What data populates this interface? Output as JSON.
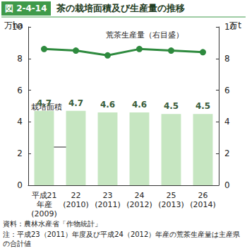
{
  "chart_data": {
    "type": "bar",
    "figure": "図 2-4-14",
    "title": "茶の栽培面積及び生産量の推移",
    "categories": [
      "平成21\n年産\n(2009)",
      "22\n(2010)",
      "23\n(2011)",
      "24\n(2012)",
      "25\n(2013)",
      "26\n(2014)"
    ],
    "series": [
      {
        "name": "栽培面積",
        "type": "bar",
        "color": "#c6e6c1",
        "values": [
          4.7,
          4.7,
          4.6,
          4.6,
          4.5,
          4.5
        ],
        "data_labels": true
      },
      {
        "name": "荒茶生産量（右目盛）",
        "type": "line",
        "axis": "y2",
        "color": "#2e8a3e",
        "marker": "circle",
        "values": [
          8.6,
          8.5,
          8.2,
          8.6,
          8.5,
          8.4
        ]
      }
    ],
    "y_label": "万ha",
    "y2_label": "万t",
    "ylim": [
      0,
      10
    ],
    "yticks": [
      0,
      2,
      4,
      6,
      8,
      10
    ],
    "y2lim": [
      0,
      10
    ],
    "y2ticks": [
      0,
      2,
      4,
      6,
      8,
      10
    ],
    "grid": false,
    "source": "資料：農林水産省「作物統計」",
    "note": "注：平成23（2011）年度及び平成24（2012）年産の荒茶生産量は主産県の合計値"
  }
}
